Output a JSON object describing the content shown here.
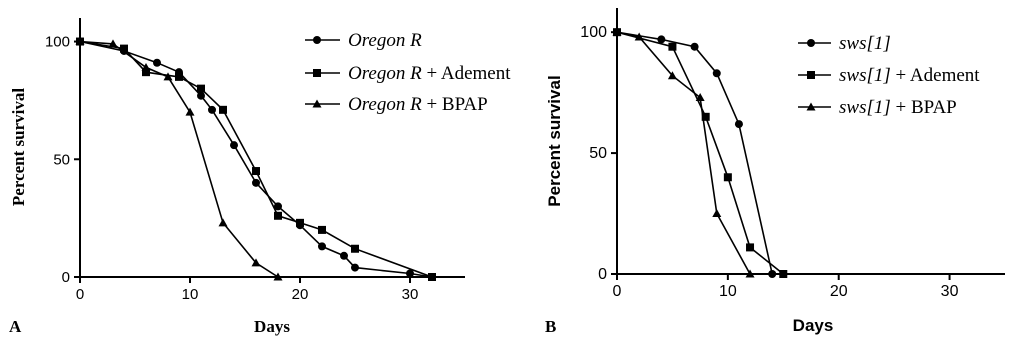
{
  "chart_data": [
    {
      "panel": "A",
      "type": "line",
      "xlabel": "Days",
      "ylabel": "Percent survival",
      "xlim": [
        0,
        35
      ],
      "ylim": [
        0,
        110
      ],
      "xticks": [
        "0",
        "10",
        "20",
        "30"
      ],
      "yticks": [
        "0",
        "50",
        "100"
      ],
      "legend_position": "top-right",
      "series": [
        {
          "label_italic": "Oregon R",
          "label_suffix": "",
          "marker": "circle",
          "x": [
            0,
            4,
            7,
            9,
            11,
            12,
            14,
            16,
            18,
            20,
            22,
            24,
            25,
            30,
            32
          ],
          "y": [
            100,
            96,
            91,
            87,
            77,
            71,
            56,
            40,
            30,
            22,
            13,
            9,
            4,
            1.5,
            0
          ]
        },
        {
          "label_italic": "Oregon R",
          "label_suffix": " + Adement",
          "marker": "square",
          "x": [
            0,
            4,
            6,
            9,
            11,
            13,
            16,
            18,
            20,
            22,
            25,
            32
          ],
          "y": [
            100,
            97,
            87,
            85,
            80,
            71,
            45,
            26,
            23,
            20,
            12,
            0
          ]
        },
        {
          "label_italic": "Oregon R",
          "label_suffix": " + BPAP",
          "marker": "triangle",
          "x": [
            0,
            3,
            6,
            8,
            10,
            13,
            16,
            18
          ],
          "y": [
            100,
            99,
            89,
            85,
            70,
            23,
            6,
            0
          ]
        }
      ]
    },
    {
      "panel": "B",
      "type": "line",
      "xlabel": "Days",
      "ylabel": "Percent survival",
      "xlim": [
        0,
        35
      ],
      "ylim": [
        0,
        110
      ],
      "xticks": [
        "0",
        "10",
        "20",
        "30"
      ],
      "yticks": [
        "0",
        "50",
        "100"
      ],
      "legend_position": "top-right",
      "series": [
        {
          "label_italic": "sws[1]",
          "label_suffix": "",
          "marker": "circle",
          "x": [
            0,
            4,
            7,
            9,
            11,
            14
          ],
          "y": [
            100,
            97,
            94,
            83,
            62,
            0
          ]
        },
        {
          "label_italic": "sws[1]",
          "label_suffix": " + Adement",
          "marker": "square",
          "x": [
            0,
            5,
            8,
            10,
            12,
            15
          ],
          "y": [
            100,
            94,
            65,
            40,
            11,
            0
          ]
        },
        {
          "label_italic": "sws[1]",
          "label_suffix": " + BPAP",
          "marker": "triangle",
          "x": [
            0,
            2,
            5,
            7.5,
            9,
            12
          ],
          "y": [
            100,
            98,
            82,
            73,
            25,
            0
          ]
        }
      ]
    }
  ]
}
